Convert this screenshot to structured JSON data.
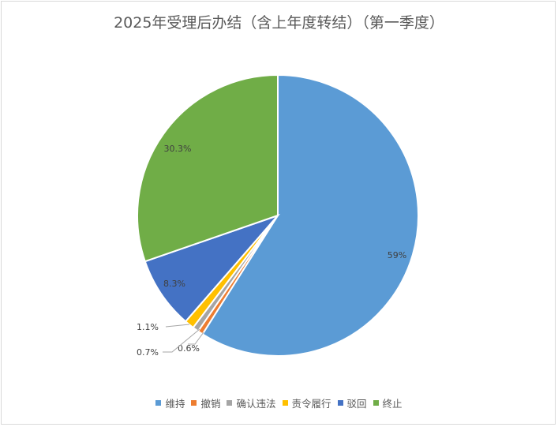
{
  "chart_data": {
    "type": "pie",
    "title": "2025年受理后办结（含上年度转结）（第一季度）",
    "categories": [
      "维持",
      "撤销",
      "确认违法",
      "责令履行",
      "驳回",
      "终止"
    ],
    "values": [
      59.0,
      0.6,
      0.7,
      1.1,
      8.3,
      30.3
    ],
    "data_labels": [
      "59%",
      "0.6%",
      "0.7%",
      "1.1%",
      "8.3%",
      "30.3%"
    ],
    "colors": [
      "#5b9bd5",
      "#ed7d31",
      "#a5a5a5",
      "#ffc000",
      "#4472c4",
      "#70ad47"
    ],
    "legend_position": "bottom",
    "start_angle_deg": 0,
    "direction": "clockwise"
  }
}
